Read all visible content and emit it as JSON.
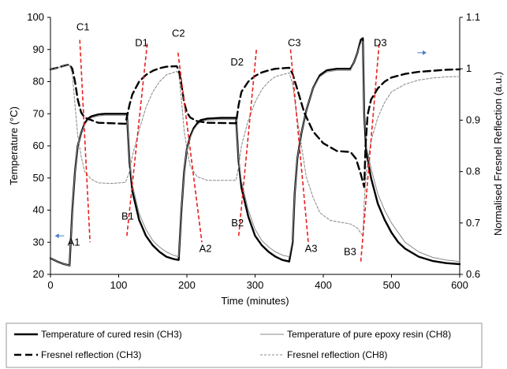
{
  "chart_data": {
    "type": "line",
    "xlabel": "Time (minutes)",
    "ylabel": "Temperature (°C)",
    "y2label": "Normalised Fresnel Reflection (a.u.)",
    "xlim": [
      0,
      600
    ],
    "ylim": [
      20,
      100
    ],
    "y2lim": [
      0.6,
      1.1
    ],
    "x_ticks": [
      "0",
      "100",
      "200",
      "300",
      "400",
      "500",
      "600"
    ],
    "y_ticks": [
      "20",
      "30",
      "40",
      "50",
      "60",
      "70",
      "80",
      "90",
      "100"
    ],
    "y2_ticks": [
      "0.6",
      "0.7",
      "0.8",
      "0.9",
      "1",
      "1.1"
    ],
    "grid": false,
    "legend_position": "bottom",
    "series": [
      {
        "name": "Temperature of cured resin (CH3)",
        "axis": "left",
        "color": "#000000",
        "points": [
          [
            0,
            25
          ],
          [
            10,
            24
          ],
          [
            20,
            23.2
          ],
          [
            28,
            22.8
          ],
          [
            32,
            40
          ],
          [
            36,
            52
          ],
          [
            40,
            60
          ],
          [
            45,
            64
          ],
          [
            50,
            67
          ],
          [
            55,
            68.5
          ],
          [
            60,
            69.2
          ],
          [
            70,
            69.8
          ],
          [
            80,
            70
          ],
          [
            100,
            70
          ],
          [
            112,
            70
          ],
          [
            116,
            55
          ],
          [
            120,
            46
          ],
          [
            130,
            37
          ],
          [
            140,
            32
          ],
          [
            150,
            29
          ],
          [
            160,
            27
          ],
          [
            170,
            25.5
          ],
          [
            180,
            24.8
          ],
          [
            188,
            24.5
          ],
          [
            192,
            40
          ],
          [
            196,
            52
          ],
          [
            200,
            59
          ],
          [
            205,
            63
          ],
          [
            210,
            65.5
          ],
          [
            215,
            67
          ],
          [
            220,
            68
          ],
          [
            230,
            68.5
          ],
          [
            250,
            68.7
          ],
          [
            272,
            68.7
          ],
          [
            276,
            55
          ],
          [
            280,
            47
          ],
          [
            290,
            38
          ],
          [
            300,
            32
          ],
          [
            310,
            29
          ],
          [
            320,
            27
          ],
          [
            330,
            25.5
          ],
          [
            340,
            24.5
          ],
          [
            350,
            24
          ],
          [
            355,
            30
          ],
          [
            358,
            45
          ],
          [
            362,
            56
          ],
          [
            368,
            64
          ],
          [
            375,
            71
          ],
          [
            385,
            78
          ],
          [
            395,
            82
          ],
          [
            405,
            83.5
          ],
          [
            420,
            84
          ],
          [
            440,
            84
          ],
          [
            445,
            86
          ],
          [
            450,
            89
          ],
          [
            455,
            93
          ],
          [
            458,
            93.5
          ],
          [
            460,
            70
          ],
          [
            463,
            58
          ],
          [
            470,
            50
          ],
          [
            480,
            42
          ],
          [
            490,
            37
          ],
          [
            500,
            33
          ],
          [
            510,
            30
          ],
          [
            520,
            28
          ],
          [
            540,
            25.5
          ],
          [
            560,
            24.2
          ],
          [
            580,
            23.5
          ],
          [
            600,
            23.2
          ]
        ]
      },
      {
        "name": "Temperature of pure epoxy resin (CH8)",
        "axis": "left",
        "color": "#888888",
        "points": [
          [
            0,
            25
          ],
          [
            10,
            24
          ],
          [
            20,
            23.2
          ],
          [
            28,
            22.8
          ],
          [
            32,
            40
          ],
          [
            36,
            52
          ],
          [
            40,
            60
          ],
          [
            45,
            64
          ],
          [
            50,
            66.5
          ],
          [
            55,
            68
          ],
          [
            60,
            68.7
          ],
          [
            70,
            69.3
          ],
          [
            80,
            69.5
          ],
          [
            100,
            69.5
          ],
          [
            112,
            69.5
          ],
          [
            116,
            56
          ],
          [
            120,
            48
          ],
          [
            130,
            39
          ],
          [
            140,
            34
          ],
          [
            150,
            30.5
          ],
          [
            160,
            28.5
          ],
          [
            170,
            27
          ],
          [
            180,
            26
          ],
          [
            188,
            25.5
          ],
          [
            192,
            40
          ],
          [
            196,
            52
          ],
          [
            200,
            59
          ],
          [
            205,
            62.5
          ],
          [
            210,
            65
          ],
          [
            215,
            66.5
          ],
          [
            220,
            67.5
          ],
          [
            230,
            68
          ],
          [
            250,
            68.2
          ],
          [
            272,
            68.2
          ],
          [
            276,
            56
          ],
          [
            280,
            49
          ],
          [
            290,
            40
          ],
          [
            300,
            34
          ],
          [
            310,
            30.5
          ],
          [
            320,
            28.5
          ],
          [
            330,
            27
          ],
          [
            340,
            26
          ],
          [
            350,
            25.5
          ],
          [
            355,
            31
          ],
          [
            358,
            45
          ],
          [
            362,
            56
          ],
          [
            368,
            64
          ],
          [
            375,
            71
          ],
          [
            385,
            78
          ],
          [
            395,
            81.5
          ],
          [
            405,
            83
          ],
          [
            420,
            83.5
          ],
          [
            440,
            83.5
          ],
          [
            445,
            86
          ],
          [
            450,
            89
          ],
          [
            455,
            92
          ],
          [
            458,
            92.5
          ],
          [
            460,
            71
          ],
          [
            463,
            60
          ],
          [
            470,
            53
          ],
          [
            480,
            45
          ],
          [
            490,
            40
          ],
          [
            500,
            36
          ],
          [
            510,
            33
          ],
          [
            520,
            30
          ],
          [
            540,
            27
          ],
          [
            560,
            25.3
          ],
          [
            580,
            24.5
          ],
          [
            600,
            24
          ]
        ]
      },
      {
        "name": "Fresnel reflection (CH3)",
        "axis": "right",
        "color": "#000000",
        "points": [
          [
            0,
            0.999
          ],
          [
            10,
            1.002
          ],
          [
            20,
            1.006
          ],
          [
            28,
            1.008
          ],
          [
            32,
            1.0
          ],
          [
            36,
            0.975
          ],
          [
            40,
            0.94
          ],
          [
            45,
            0.915
          ],
          [
            50,
            0.905
          ],
          [
            60,
            0.9
          ],
          [
            70,
            0.895
          ],
          [
            90,
            0.894
          ],
          [
            110,
            0.893
          ],
          [
            116,
            0.93
          ],
          [
            120,
            0.95
          ],
          [
            130,
            0.975
          ],
          [
            140,
            0.988
          ],
          [
            150,
            0.996
          ],
          [
            160,
            1.001
          ],
          [
            170,
            1.004
          ],
          [
            185,
            1.005
          ],
          [
            188,
            0.998
          ],
          [
            192,
            0.97
          ],
          [
            196,
            0.935
          ],
          [
            200,
            0.915
          ],
          [
            205,
            0.905
          ],
          [
            215,
            0.898
          ],
          [
            230,
            0.895
          ],
          [
            272,
            0.894
          ],
          [
            276,
            0.93
          ],
          [
            280,
            0.955
          ],
          [
            290,
            0.975
          ],
          [
            300,
            0.986
          ],
          [
            310,
            0.993
          ],
          [
            320,
            0.997
          ],
          [
            330,
            1.0
          ],
          [
            350,
            1.002
          ],
          [
            355,
            0.99
          ],
          [
            362,
            0.96
          ],
          [
            372,
            0.915
          ],
          [
            385,
            0.878
          ],
          [
            400,
            0.855
          ],
          [
            420,
            0.84
          ],
          [
            440,
            0.838
          ],
          [
            448,
            0.825
          ],
          [
            455,
            0.795
          ],
          [
            460,
            0.77
          ],
          [
            462,
            0.85
          ],
          [
            465,
            0.91
          ],
          [
            470,
            0.94
          ],
          [
            480,
            0.962
          ],
          [
            490,
            0.975
          ],
          [
            500,
            0.983
          ],
          [
            520,
            0.99
          ],
          [
            540,
            0.994
          ],
          [
            560,
            0.996
          ],
          [
            580,
            0.998
          ],
          [
            600,
            0.999
          ]
        ]
      },
      {
        "name": "Fresnel reflection (CH8)",
        "axis": "right",
        "color": "#888888",
        "points": [
          [
            0,
            0.999
          ],
          [
            10,
            1.002
          ],
          [
            20,
            1.006
          ],
          [
            28,
            1.007
          ],
          [
            32,
            0.99
          ],
          [
            36,
            0.93
          ],
          [
            40,
            0.87
          ],
          [
            45,
            0.83
          ],
          [
            50,
            0.8
          ],
          [
            60,
            0.785
          ],
          [
            70,
            0.778
          ],
          [
            90,
            0.777
          ],
          [
            110,
            0.779
          ],
          [
            116,
            0.8
          ],
          [
            120,
            0.83
          ],
          [
            130,
            0.88
          ],
          [
            140,
            0.925
          ],
          [
            150,
            0.955
          ],
          [
            160,
            0.975
          ],
          [
            170,
            0.988
          ],
          [
            185,
            0.995
          ],
          [
            188,
            0.99
          ],
          [
            192,
            0.94
          ],
          [
            196,
            0.88
          ],
          [
            200,
            0.845
          ],
          [
            205,
            0.81
          ],
          [
            215,
            0.79
          ],
          [
            230,
            0.783
          ],
          [
            272,
            0.783
          ],
          [
            276,
            0.81
          ],
          [
            280,
            0.85
          ],
          [
            290,
            0.9
          ],
          [
            300,
            0.935
          ],
          [
            310,
            0.96
          ],
          [
            320,
            0.975
          ],
          [
            330,
            0.985
          ],
          [
            350,
            0.992
          ],
          [
            355,
            0.97
          ],
          [
            360,
            0.92
          ],
          [
            368,
            0.85
          ],
          [
            375,
            0.79
          ],
          [
            385,
            0.75
          ],
          [
            395,
            0.72
          ],
          [
            410,
            0.705
          ],
          [
            440,
            0.698
          ],
          [
            450,
            0.69
          ],
          [
            458,
            0.675
          ],
          [
            460,
            0.74
          ],
          [
            463,
            0.8
          ],
          [
            470,
            0.86
          ],
          [
            480,
            0.905
          ],
          [
            490,
            0.935
          ],
          [
            500,
            0.955
          ],
          [
            520,
            0.97
          ],
          [
            540,
            0.978
          ],
          [
            560,
            0.982
          ],
          [
            580,
            0.984
          ],
          [
            600,
            0.985
          ]
        ]
      }
    ],
    "annotation_lines": [
      {
        "x": [
          43,
          58
        ],
        "y": [
          93,
          30
        ]
      },
      {
        "x": [
          112,
          142
        ],
        "y": [
          32,
          92
        ]
      },
      {
        "x": [
          187,
          222
        ],
        "y": [
          89,
          30
        ]
      },
      {
        "x": [
          276,
          302
        ],
        "y": [
          32,
          90
        ]
      },
      {
        "x": [
          352,
          378
        ],
        "y": [
          90,
          30
        ]
      },
      {
        "x": [
          455,
          482
        ],
        "y": [
          24,
          92
        ]
      }
    ],
    "annotations": [
      {
        "text": "C1",
        "x": 38,
        "y": 96
      },
      {
        "text": "D1",
        "x": 124,
        "y": 91
      },
      {
        "text": "C2",
        "x": 178,
        "y": 94
      },
      {
        "text": "D2",
        "x": 264,
        "y": 85
      },
      {
        "text": "C3",
        "x": 348,
        "y": 91
      },
      {
        "text": "D3",
        "x": 474,
        "y": 91
      },
      {
        "text": "A1",
        "x": 25,
        "y": 29
      },
      {
        "text": "B1",
        "x": 104,
        "y": 37
      },
      {
        "text": "A2",
        "x": 218,
        "y": 27
      },
      {
        "text": "B2",
        "x": 265,
        "y": 35
      },
      {
        "text": "A3",
        "x": 373,
        "y": 27
      },
      {
        "text": "B3",
        "x": 430,
        "y": 26
      }
    ],
    "arrows": [
      {
        "from": [
          20,
          32
        ],
        "to": [
          10,
          32
        ],
        "direction": "left"
      },
      {
        "from": [
          538,
          89
        ],
        "to": [
          548,
          89
        ],
        "direction": "right"
      }
    ],
    "annotation_color": "#e8201e"
  }
}
